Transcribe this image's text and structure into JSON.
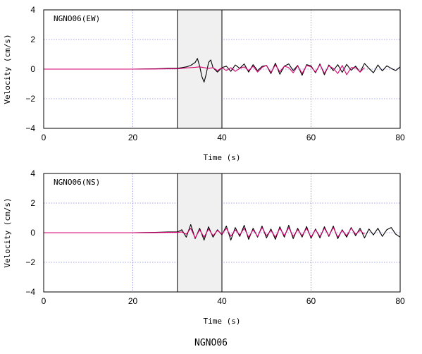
{
  "figure_title": "NGNO06",
  "colors": {
    "black_trace": "#000000",
    "red_trace": "#d6006e",
    "grid": "#8888dd",
    "window_fill": "#f0f0f0"
  },
  "chart_data": [
    {
      "type": "line",
      "label": "NGNO06(EW)",
      "xlabel": "Time (s)",
      "ylabel": "Velocity (cm/s)",
      "xlim": [
        0,
        80
      ],
      "ylim": [
        -4,
        4
      ],
      "xticks": [
        "0",
        "20",
        "40",
        "60",
        "80"
      ],
      "yticks": [
        "4",
        "2",
        "0",
        "−2",
        "−4"
      ],
      "grid": true,
      "highlight_window": [
        30,
        40
      ],
      "series": [
        {
          "color": "black",
          "x": [
            0,
            10,
            20,
            25,
            28,
            30,
            31,
            32,
            33,
            34,
            34.5,
            35,
            35.5,
            36,
            36.5,
            37,
            37.5,
            38,
            39,
            40,
            41,
            42,
            43,
            44,
            45,
            46,
            47,
            48,
            49,
            50,
            51,
            52,
            53,
            54,
            55,
            56,
            57,
            58,
            59,
            60,
            61,
            62,
            63,
            64,
            65,
            66,
            67,
            68,
            69,
            70,
            71,
            72,
            73,
            74,
            75,
            76,
            77,
            78,
            79,
            80
          ],
          "y": [
            0,
            0,
            0,
            0.02,
            0.05,
            0.05,
            0.1,
            0.15,
            0.25,
            0.45,
            0.72,
            0.2,
            -0.5,
            -0.88,
            -0.3,
            0.45,
            0.62,
            0.1,
            -0.2,
            0.1,
            0.2,
            -0.15,
            0.28,
            0.05,
            0.35,
            -0.2,
            0.3,
            -0.1,
            0.18,
            0.25,
            -0.3,
            0.4,
            -0.35,
            0.2,
            0.35,
            -0.1,
            0.25,
            -0.42,
            0.3,
            0.22,
            -0.25,
            0.35,
            -0.38,
            0.28,
            -0.1,
            0.3,
            -0.22,
            0.32,
            -0.08,
            0.2,
            -0.2,
            0.38,
            0.05,
            -0.25,
            0.28,
            -0.12,
            0.22,
            0.05,
            -0.1,
            0.15
          ]
        },
        {
          "color": "red",
          "x": [
            0,
            10,
            20,
            25,
            28,
            30,
            31,
            32,
            33,
            34,
            35,
            36,
            37,
            38,
            39,
            40,
            41,
            42,
            43,
            44,
            45,
            46,
            47,
            48,
            49,
            50,
            51,
            52,
            53,
            54,
            55,
            56,
            57,
            58,
            59,
            60,
            61,
            62,
            63,
            64,
            65,
            66,
            67,
            68,
            69,
            70,
            71,
            72
          ],
          "y": [
            0,
            0,
            0,
            0.01,
            0.02,
            0.02,
            0.05,
            0.08,
            0.1,
            0.12,
            0.15,
            0.1,
            0.05,
            0.1,
            -0.1,
            0.1,
            -0.1,
            0.1,
            -0.15,
            0.05,
            0.15,
            -0.1,
            0.2,
            -0.2,
            0.12,
            0.25,
            -0.22,
            0.28,
            -0.18,
            0.2,
            0.1,
            -0.25,
            0.22,
            -0.3,
            0.25,
            0.15,
            -0.2,
            0.3,
            -0.28,
            0.22,
            0.05,
            -0.3,
            0.25,
            -0.38,
            0.1,
            0.1,
            -0.2,
            0.1
          ]
        }
      ]
    },
    {
      "type": "line",
      "label": "NGNO06(NS)",
      "xlabel": "Time (s)",
      "ylabel": "Velocity (cm/s)",
      "xlim": [
        0,
        80
      ],
      "ylim": [
        -4,
        4
      ],
      "xticks": [
        "0",
        "20",
        "40",
        "60",
        "80"
      ],
      "yticks": [
        "4",
        "2",
        "0",
        "−2",
        "−4"
      ],
      "grid": true,
      "highlight_window": [
        30,
        40
      ],
      "series": [
        {
          "color": "black",
          "x": [
            0,
            10,
            20,
            25,
            28,
            30,
            31,
            32,
            33,
            34,
            35,
            36,
            37,
            38,
            39,
            40,
            41,
            42,
            43,
            44,
            45,
            46,
            47,
            48,
            49,
            50,
            51,
            52,
            53,
            54,
            55,
            56,
            57,
            58,
            59,
            60,
            61,
            62,
            63,
            64,
            65,
            66,
            67,
            68,
            69,
            70,
            71,
            72,
            73,
            74,
            75,
            76,
            77,
            78,
            79,
            80
          ],
          "y": [
            0,
            0,
            0,
            0.02,
            0.05,
            0.05,
            0.2,
            -0.3,
            0.55,
            -0.4,
            0.3,
            -0.5,
            0.4,
            -0.3,
            0.2,
            -0.15,
            0.45,
            -0.5,
            0.35,
            -0.25,
            0.5,
            -0.45,
            0.3,
            -0.3,
            0.45,
            -0.35,
            0.25,
            -0.45,
            0.4,
            -0.3,
            0.5,
            -0.4,
            0.3,
            -0.3,
            0.42,
            -0.38,
            0.25,
            -0.35,
            0.4,
            -0.25,
            0.45,
            -0.4,
            0.2,
            -0.3,
            0.35,
            -0.2,
            0.3,
            -0.35,
            0.25,
            -0.15,
            0.3,
            -0.25,
            0.2,
            0.35,
            -0.1,
            -0.3
          ]
        },
        {
          "color": "red",
          "x": [
            0,
            10,
            20,
            25,
            28,
            30,
            31,
            32,
            33,
            34,
            35,
            36,
            37,
            38,
            39,
            40,
            41,
            42,
            43,
            44,
            45,
            46,
            47,
            48,
            49,
            50,
            51,
            52,
            53,
            54,
            55,
            56,
            57,
            58,
            59,
            60,
            61,
            62,
            63,
            64,
            65,
            66,
            67,
            68,
            69,
            70,
            71,
            72
          ],
          "y": [
            0,
            0,
            0,
            0.01,
            0.02,
            0.02,
            0.05,
            -0.1,
            0.3,
            -0.35,
            0.2,
            -0.3,
            0.25,
            -0.2,
            0.15,
            -0.1,
            0.3,
            -0.25,
            0.2,
            -0.15,
            0.3,
            -0.3,
            0.2,
            -0.25,
            0.35,
            -0.2,
            0.15,
            -0.3,
            0.3,
            -0.2,
            0.35,
            -0.25,
            0.2,
            -0.2,
            0.3,
            -0.3,
            0.2,
            -0.25,
            0.3,
            -0.2,
            0.35,
            -0.3,
            0.15,
            -0.2,
            0.3,
            -0.1,
            0.15,
            -0.1
          ]
        }
      ]
    }
  ]
}
